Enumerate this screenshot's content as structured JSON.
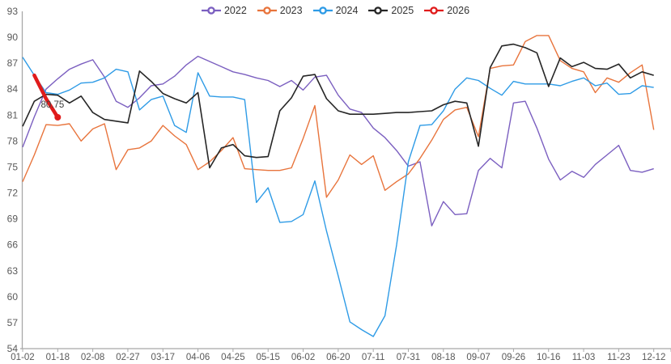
{
  "chart_data": {
    "type": "line",
    "title": "",
    "legend_position": "top-center",
    "grid": false,
    "ylim": [
      54,
      93
    ],
    "y_tick_step": 3,
    "x_tick_labels": [
      "01-02",
      "01-18",
      "02-08",
      "02-27",
      "03-17",
      "04-06",
      "04-25",
      "05-15",
      "06-02",
      "06-20",
      "07-11",
      "07-31",
      "08-18",
      "09-07",
      "09-26",
      "10-16",
      "11-03",
      "11-23",
      "12-12"
    ],
    "points_per_label_interval": 3,
    "series": [
      {
        "name": "2022",
        "color": "#7B5FC0",
        "line_width": 1.4,
        "values": [
          77.3,
          80.8,
          84.0,
          85.2,
          86.3,
          86.9,
          87.4,
          85.4,
          82.6,
          81.9,
          83.0,
          84.4,
          84.6,
          85.5,
          86.8,
          87.8,
          87.2,
          86.6,
          86.0,
          85.7,
          85.3,
          85.0,
          84.3,
          85.0,
          83.9,
          85.4,
          85.6,
          83.3,
          81.7,
          81.3,
          79.5,
          78.4,
          76.9,
          75.1,
          75.6,
          68.2,
          71.0,
          69.5,
          69.6,
          74.6,
          76.0,
          74.9,
          82.4,
          82.6,
          79.5,
          75.9,
          73.5,
          74.5,
          73.8,
          75.3,
          76.4,
          77.5,
          74.6,
          74.4,
          74.8
        ]
      },
      {
        "name": "2023",
        "color": "#E8743C",
        "line_width": 1.4,
        "values": [
          73.3,
          76.4,
          79.9,
          79.8,
          80.0,
          78.0,
          79.4,
          80.0,
          74.7,
          77.0,
          77.2,
          78.0,
          79.8,
          78.6,
          77.6,
          74.7,
          75.6,
          76.9,
          78.4,
          74.8,
          74.7,
          74.6,
          74.6,
          74.9,
          78.3,
          82.1,
          71.5,
          73.5,
          76.4,
          75.3,
          76.3,
          72.3,
          73.3,
          74.2,
          76.0,
          78.1,
          80.5,
          81.6,
          81.9,
          78.5,
          86.4,
          86.7,
          86.8,
          89.5,
          90.2,
          90.2,
          87.3,
          86.4,
          86.0,
          83.6,
          85.3,
          84.8,
          85.9,
          86.8,
          79.3
        ]
      },
      {
        "name": "2024",
        "color": "#2E9BE6",
        "line_width": 1.4,
        "values": [
          87.7,
          85.6,
          83.6,
          83.4,
          83.9,
          84.7,
          84.8,
          85.3,
          86.3,
          86.0,
          81.6,
          82.8,
          83.2,
          79.8,
          79.0,
          85.9,
          83.2,
          83.1,
          83.1,
          82.8,
          70.9,
          72.6,
          68.6,
          68.7,
          69.5,
          73.4,
          67.6,
          62.4,
          57.1,
          56.2,
          55.4,
          57.8,
          66.0,
          75.6,
          79.8,
          79.9,
          81.5,
          84.0,
          85.3,
          85.0,
          84.1,
          83.3,
          84.9,
          84.6,
          84.6,
          84.6,
          84.4,
          84.9,
          85.3,
          84.4,
          84.7,
          83.4,
          83.5,
          84.4,
          84.2
        ]
      },
      {
        "name": "2025",
        "color": "#262626",
        "line_width": 1.6,
        "values": [
          79.7,
          82.6,
          83.4,
          83.3,
          82.4,
          83.2,
          81.3,
          80.5,
          80.3,
          80.1,
          86.1,
          84.9,
          83.5,
          82.9,
          82.4,
          83.6,
          74.9,
          77.2,
          77.6,
          76.3,
          76.1,
          76.2,
          81.5,
          83.0,
          85.5,
          85.7,
          82.9,
          81.5,
          81.1,
          81.1,
          81.1,
          81.2,
          81.3,
          81.3,
          81.4,
          81.5,
          82.2,
          82.6,
          82.4,
          77.4,
          86.5,
          89.0,
          89.2,
          88.8,
          88.2,
          84.3,
          87.6,
          86.6,
          87.1,
          86.4,
          86.3,
          86.9,
          85.3,
          86.0,
          85.6
        ]
      },
      {
        "name": "2026",
        "color": "#E01B1B",
        "line_width": 4.5,
        "highlight": true,
        "endpoint_dot": true,
        "values": [
          null,
          85.6,
          82.9,
          80.75,
          null,
          null,
          null,
          null,
          null,
          null,
          null,
          null,
          null,
          null,
          null,
          null,
          null,
          null,
          null,
          null,
          null,
          null,
          null,
          null,
          null,
          null,
          null,
          null,
          null,
          null,
          null,
          null,
          null,
          null,
          null,
          null,
          null,
          null,
          null,
          null,
          null,
          null,
          null,
          null,
          null,
          null,
          null,
          null,
          null,
          null,
          null,
          null,
          null,
          null,
          null
        ]
      }
    ],
    "annotation": {
      "text": "80.75",
      "series": "2026",
      "point_index": 3
    }
  },
  "axis": {
    "tick_label_color": "#595959",
    "axis_line_color": "#A8A8A8",
    "y_tick_labels": [
      "93",
      "90",
      "87",
      "84",
      "81",
      "78",
      "75",
      "72",
      "69",
      "66",
      "63",
      "60",
      "57",
      "54"
    ]
  }
}
